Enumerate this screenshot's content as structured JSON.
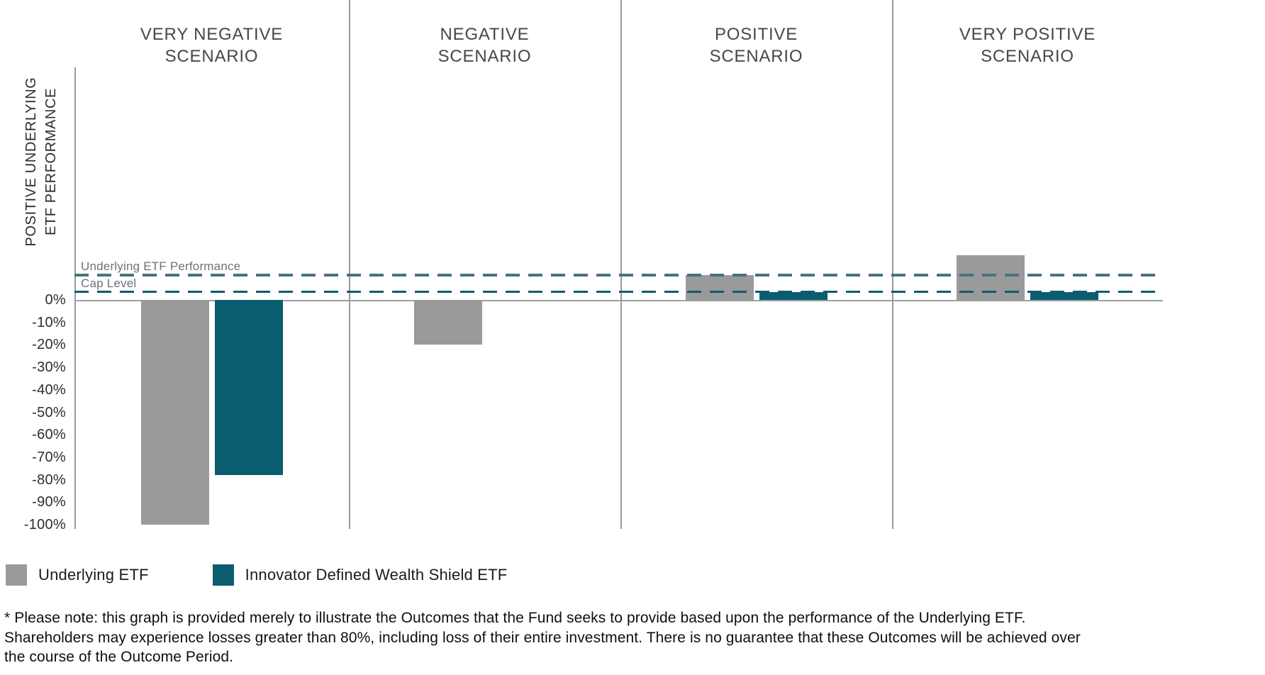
{
  "chart_data": {
    "type": "bar",
    "unit": "%",
    "scenarios": [
      "VERY NEGATIVE\nSCENARIO",
      "NEGATIVE\nSCENARIO",
      "POSITIVE\nSCENARIO",
      "VERY POSITIVE\nSCENARIO"
    ],
    "series": [
      {
        "name": "Underlying ETF",
        "color": "#9a9a9a",
        "values": [
          -100,
          -20,
          11,
          20
        ]
      },
      {
        "name": "Innovator Defined Wealth Shield ETF",
        "color": "#0c5c6f",
        "values": [
          -78,
          0,
          3.5,
          3.5
        ]
      }
    ],
    "reference_lines": [
      {
        "label": "Underlying ETF Performance",
        "value": 11,
        "color": "#47737f"
      },
      {
        "label": "Cap Level",
        "value": 3.5,
        "color": "#0c5c6f"
      }
    ],
    "y_axis": {
      "label": "POSITIVE UNDERLYING\nETF PERFORMANCE",
      "ticks": [
        "0%",
        "-10%",
        "-20%",
        "-30%",
        "-40%",
        "-50%",
        "-60%",
        "-70%",
        "-80%",
        "-90%",
        "-100%"
      ],
      "tick_values": [
        0,
        -10,
        -20,
        -30,
        -40,
        -50,
        -60,
        -70,
        -80,
        -90,
        -100
      ],
      "ylim": [
        -100,
        22
      ],
      "grid": false
    },
    "legend_position": "bottom-left"
  },
  "footnote": "* Please note: this graph is provided merely to illustrate the Outcomes that the Fund seeks to provide based upon the performance of the Underlying ETF.\nShareholders may experience losses greater than 80%, including loss of their entire investment. There is no guarantee that these Outcomes will be achieved over\nthe course of the Outcome Period."
}
